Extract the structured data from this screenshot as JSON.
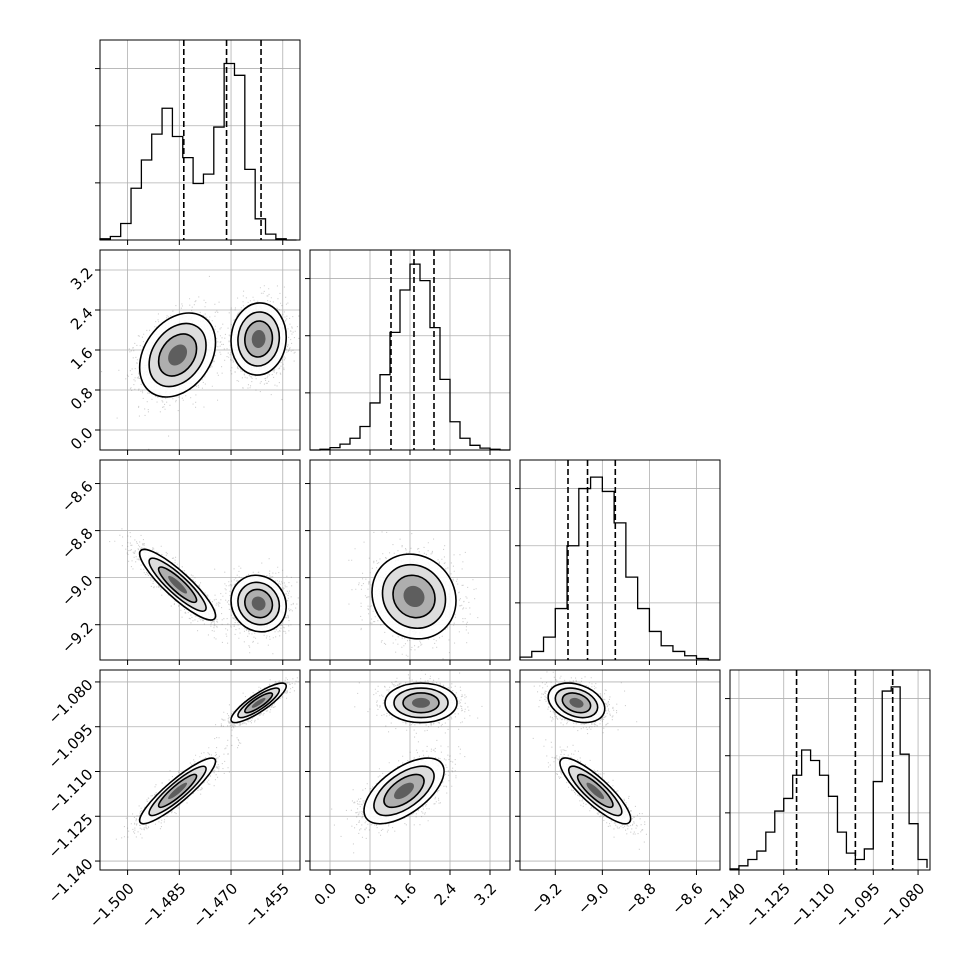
{
  "chart_data": {
    "type": "corner",
    "grid": true,
    "parameters": [
      {
        "range": [
          -1.508,
          -1.45
        ],
        "ticks": [
          -1.5,
          -1.485,
          -1.47,
          -1.455
        ],
        "tick_labels": [
          "−1.500",
          "−1.485",
          "−1.470",
          "−1.455"
        ],
        "quantiles": [
          -1.4837,
          -1.4713,
          -1.4613
        ],
        "histogram": {
          "bins": [
            -1.508,
            -1.505,
            -1.502,
            -1.499,
            -1.496,
            -1.493,
            -1.49,
            -1.487,
            -1.484,
            -1.481,
            -1.478,
            -1.475,
            -1.472,
            -1.469,
            -1.466,
            -1.463,
            -1.46,
            -1.457,
            -1.454,
            -1.451
          ],
          "heights": [
            0.5,
            1.5,
            7,
            22,
            34,
            45,
            56,
            44,
            35,
            24,
            28,
            48,
            75,
            70,
            30,
            9,
            2.5,
            0.5,
            0
          ],
          "ymax": 85
        },
        "modes": [
          {
            "mean": -1.4855,
            "sd": 0.0055,
            "weight": 0.5
          },
          {
            "mean": -1.462,
            "sd": 0.004,
            "weight": 0.5
          }
        ]
      },
      {
        "range": [
          -0.4,
          3.6
        ],
        "ticks": [
          0.0,
          0.8,
          1.6,
          2.4,
          3.2
        ],
        "tick_labels": [
          "0.0",
          "0.8",
          "1.6",
          "2.4",
          "3.2"
        ],
        "quantiles": [
          1.22,
          1.68,
          2.08
        ],
        "histogram": {
          "bins": [
            -0.4,
            -0.2,
            0.0,
            0.2,
            0.4,
            0.6,
            0.8,
            1.0,
            1.2,
            1.4,
            1.6,
            1.8,
            2.0,
            2.2,
            2.4,
            2.6,
            2.8,
            3.0,
            3.2,
            3.4,
            3.6
          ],
          "heights": [
            0,
            0.3,
            1,
            2.5,
            5,
            10,
            20,
            32,
            50,
            68,
            79,
            72,
            52,
            30,
            12,
            5,
            2,
            0.8,
            0.3,
            0
          ],
          "ymax": 85
        },
        "modes": [
          {
            "mean": 1.68,
            "sd": 0.42,
            "weight": 1.0
          }
        ]
      },
      {
        "range": [
          -9.35,
          -8.5
        ],
        "ticks": [
          -9.2,
          -9.0,
          -8.8,
          -8.6
        ],
        "tick_labels": [
          "−9.2",
          "−9.0",
          "−8.8",
          "−8.6"
        ],
        "quantiles": [
          -9.146,
          -9.063,
          -8.945
        ],
        "histogram": {
          "bins": [
            -9.35,
            -9.3,
            -9.25,
            -9.2,
            -9.15,
            -9.1,
            -9.05,
            -9.0,
            -8.95,
            -8.9,
            -8.85,
            -8.8,
            -8.75,
            -8.7,
            -8.65,
            -8.6,
            -8.55,
            -8.5
          ],
          "heights": [
            1,
            3,
            8,
            18,
            40,
            60,
            64,
            59,
            48,
            29,
            18,
            10,
            5,
            3,
            1.5,
            0.5,
            0
          ],
          "ymax": 70
        },
        "modes": [
          {
            "mean": -9.08,
            "sd": 0.09,
            "weight": 1.0
          }
        ]
      },
      {
        "range": [
          -1.143,
          -1.076
        ],
        "ticks": [
          -1.14,
          -1.125,
          -1.11,
          -1.095,
          -1.08
        ],
        "tick_labels": [
          "−1.140",
          "−1.125",
          "−1.110",
          "−1.095",
          "−1.080"
        ],
        "quantiles": [
          -1.1207,
          -1.101,
          -1.0885
        ],
        "histogram": {
          "bins": [
            -1.143,
            -1.14,
            -1.137,
            -1.134,
            -1.131,
            -1.128,
            -1.125,
            -1.122,
            -1.119,
            -1.116,
            -1.113,
            -1.11,
            -1.107,
            -1.104,
            -1.101,
            -1.098,
            -1.095,
            -1.092,
            -1.089,
            -1.086,
            -1.083,
            -1.08,
            -1.077
          ],
          "heights": [
            0.5,
            2,
            5,
            9,
            18,
            28,
            34,
            45,
            57,
            52,
            45,
            35,
            18,
            8,
            5,
            10,
            42,
            85,
            87,
            55,
            22,
            5,
            1
          ],
          "ymax": 95
        },
        "modes": [
          {
            "mean": -1.1165,
            "sd": 0.0055,
            "weight": 0.5
          },
          {
            "mean": -1.087,
            "sd": 0.0033,
            "weight": 0.5
          }
        ]
      }
    ],
    "pairs": [
      {
        "x": 0,
        "y": 1,
        "points": [
          {
            "xm": -1.4855,
            "ym": 1.5,
            "sx": 0.0055,
            "sy": 0.42,
            "r": 0.3
          },
          {
            "xm": -1.462,
            "ym": 1.82,
            "sx": 0.004,
            "sy": 0.36,
            "r": 0.05
          }
        ]
      },
      {
        "x": 0,
        "y": 2,
        "points": [
          {
            "xm": -1.4855,
            "ym": -9.03,
            "sx": 0.0055,
            "sy": 0.075,
            "r": -0.88
          },
          {
            "xm": -1.462,
            "ym": -9.11,
            "sx": 0.004,
            "sy": 0.06,
            "r": -0.1
          }
        ]
      },
      {
        "x": 0,
        "y": 3,
        "points": [
          {
            "xm": -1.4855,
            "ym": -1.1165,
            "sx": 0.0055,
            "sy": 0.0055,
            "r": 0.9
          },
          {
            "xm": -1.462,
            "ym": -1.087,
            "sx": 0.004,
            "sy": 0.0033,
            "r": 0.85
          }
        ]
      },
      {
        "x": 1,
        "y": 2,
        "points": [
          {
            "xm": 1.68,
            "ym": -9.08,
            "sx": 0.42,
            "sy": 0.09,
            "r": -0.1
          }
        ]
      },
      {
        "x": 1,
        "y": 3,
        "points": [
          {
            "xm": 1.48,
            "ym": -1.1165,
            "sx": 0.4,
            "sy": 0.0055,
            "r": 0.6
          },
          {
            "xm": 1.82,
            "ym": -1.087,
            "sx": 0.36,
            "sy": 0.0033,
            "r": 0.0
          }
        ]
      },
      {
        "x": 2,
        "y": 3,
        "points": [
          {
            "xm": -9.03,
            "ym": -1.1165,
            "sx": 0.075,
            "sy": 0.0055,
            "r": -0.85
          },
          {
            "xm": -9.11,
            "ym": -1.087,
            "sx": 0.06,
            "sy": 0.0033,
            "r": -0.3
          }
        ]
      }
    ]
  }
}
